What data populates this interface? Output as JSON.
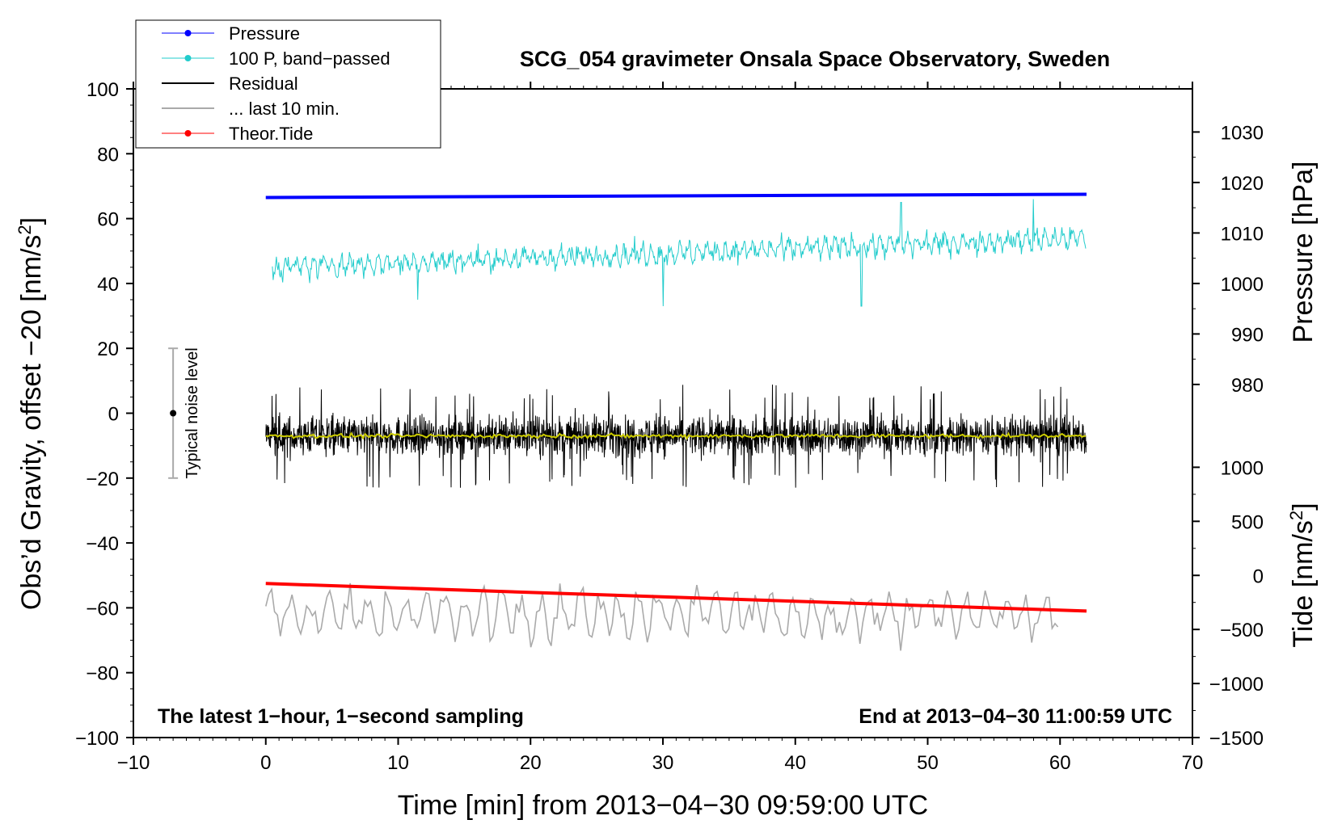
{
  "chart_data": {
    "type": "line",
    "title": "SCG_054 gravimeter Onsala Space Observatory, Sweden",
    "xlabel": "Time [min] from 2013−04−30 09:59:00 UTC",
    "ylabel": "Obs’d Gravity, offset −20 [nm/s²]",
    "ylabel_parts": {
      "main": "Obs’d Gravity, offset −20 [nm/s",
      "sup": "2",
      "close": "]"
    },
    "xlim": [
      -10,
      70
    ],
    "ylim": [
      -100,
      100
    ],
    "x_ticks": [
      -10,
      0,
      10,
      20,
      30,
      40,
      50,
      60,
      70
    ],
    "x_tick_labels": [
      "−10",
      "0",
      "10",
      "20",
      "30",
      "40",
      "50",
      "60",
      "70"
    ],
    "y_ticks": [
      -100,
      -80,
      -60,
      -40,
      -20,
      0,
      20,
      40,
      60,
      80,
      100
    ],
    "y_tick_labels": [
      "−100",
      "−80",
      "−60",
      "−40",
      "−20",
      "0",
      "20",
      "40",
      "60",
      "80",
      "100"
    ],
    "right_axes": [
      {
        "label": "Pressure [hPa]",
        "ticks": [
          980,
          990,
          1000,
          1010,
          1020,
          1030
        ],
        "tick_labels": [
          "980",
          "990",
          "1000",
          "1010",
          "1020",
          "1030"
        ],
        "gravity_equivalent": [
          {
            "value": 1000,
            "gravity": 40
          },
          {
            "value": 1030,
            "gravity": 86.7
          }
        ]
      },
      {
        "label": "Tide [nm/s²]",
        "label_parts": {
          "main": "Tide [nm/s",
          "sup": "2",
          "close": "]"
        },
        "ticks": [
          -1500,
          -1000,
          -500,
          0,
          500,
          1000
        ],
        "tick_labels": [
          "−1500",
          "−1000",
          "−500",
          "0",
          "500",
          "1000"
        ],
        "gravity_equivalent": [
          {
            "value": 0,
            "gravity": -50
          },
          {
            "value": -1500,
            "gravity": -100
          }
        ]
      }
    ],
    "legend": {
      "placement": "top-left",
      "entries": [
        {
          "label": "Pressure",
          "color": "#0000ff",
          "marker": true
        },
        {
          "label": "100 P, band−passed",
          "color": "#22cccc",
          "marker": true
        },
        {
          "label": "Residual",
          "color": "#000000",
          "marker": false
        },
        {
          "label": "... last 10 min.",
          "color": "#aaaaaa",
          "marker": false
        },
        {
          "label": "Theor.Tide",
          "color": "#ff0000",
          "marker": true
        }
      ]
    },
    "series": [
      {
        "name": "Pressure",
        "color": "#0000ff",
        "x": [
          0,
          62
        ],
        "y": [
          66.5,
          67.5
        ],
        "unit": "nm/s² equivalent"
      },
      {
        "name": "100 P, band−passed",
        "color": "#22cccc",
        "x_range": [
          0.5,
          62
        ],
        "baseline_start": 45,
        "baseline_end": 54,
        "amplitude": 4,
        "spikes": [
          {
            "x": 30,
            "y": 33
          },
          {
            "x": 45,
            "y": 33
          },
          {
            "x": 48,
            "y": 65
          },
          {
            "x": 58,
            "y": 66
          },
          {
            "x": 11.5,
            "y": 35
          }
        ]
      },
      {
        "name": "Residual",
        "color": "#000000",
        "x_range": [
          0,
          62
        ],
        "center": -7,
        "amplitude": 8,
        "extremes": [
          -27,
          11
        ]
      },
      {
        "name": "Residual smoothed",
        "color": "#cccc00",
        "x_range": [
          0,
          62
        ],
        "center": -7,
        "amplitude": 1
      },
      {
        "name": "... last 10 min.",
        "color": "#aaaaaa",
        "x_range": [
          0,
          60
        ],
        "center": -62,
        "amplitude": 9,
        "extremes": [
          -78,
          -45
        ]
      },
      {
        "name": "Theor.Tide",
        "color": "#ff0000",
        "x": [
          0,
          62
        ],
        "y": [
          -52.5,
          -61
        ]
      }
    ],
    "noise_bar": {
      "label": "Typical noise level",
      "x": -7,
      "center": 0,
      "low": -20,
      "high": 20
    },
    "annotations": {
      "bottom_left": "The latest 1−hour, 1−second sampling",
      "bottom_right": "End at 2013−04−30 11:00:59 UTC"
    }
  }
}
